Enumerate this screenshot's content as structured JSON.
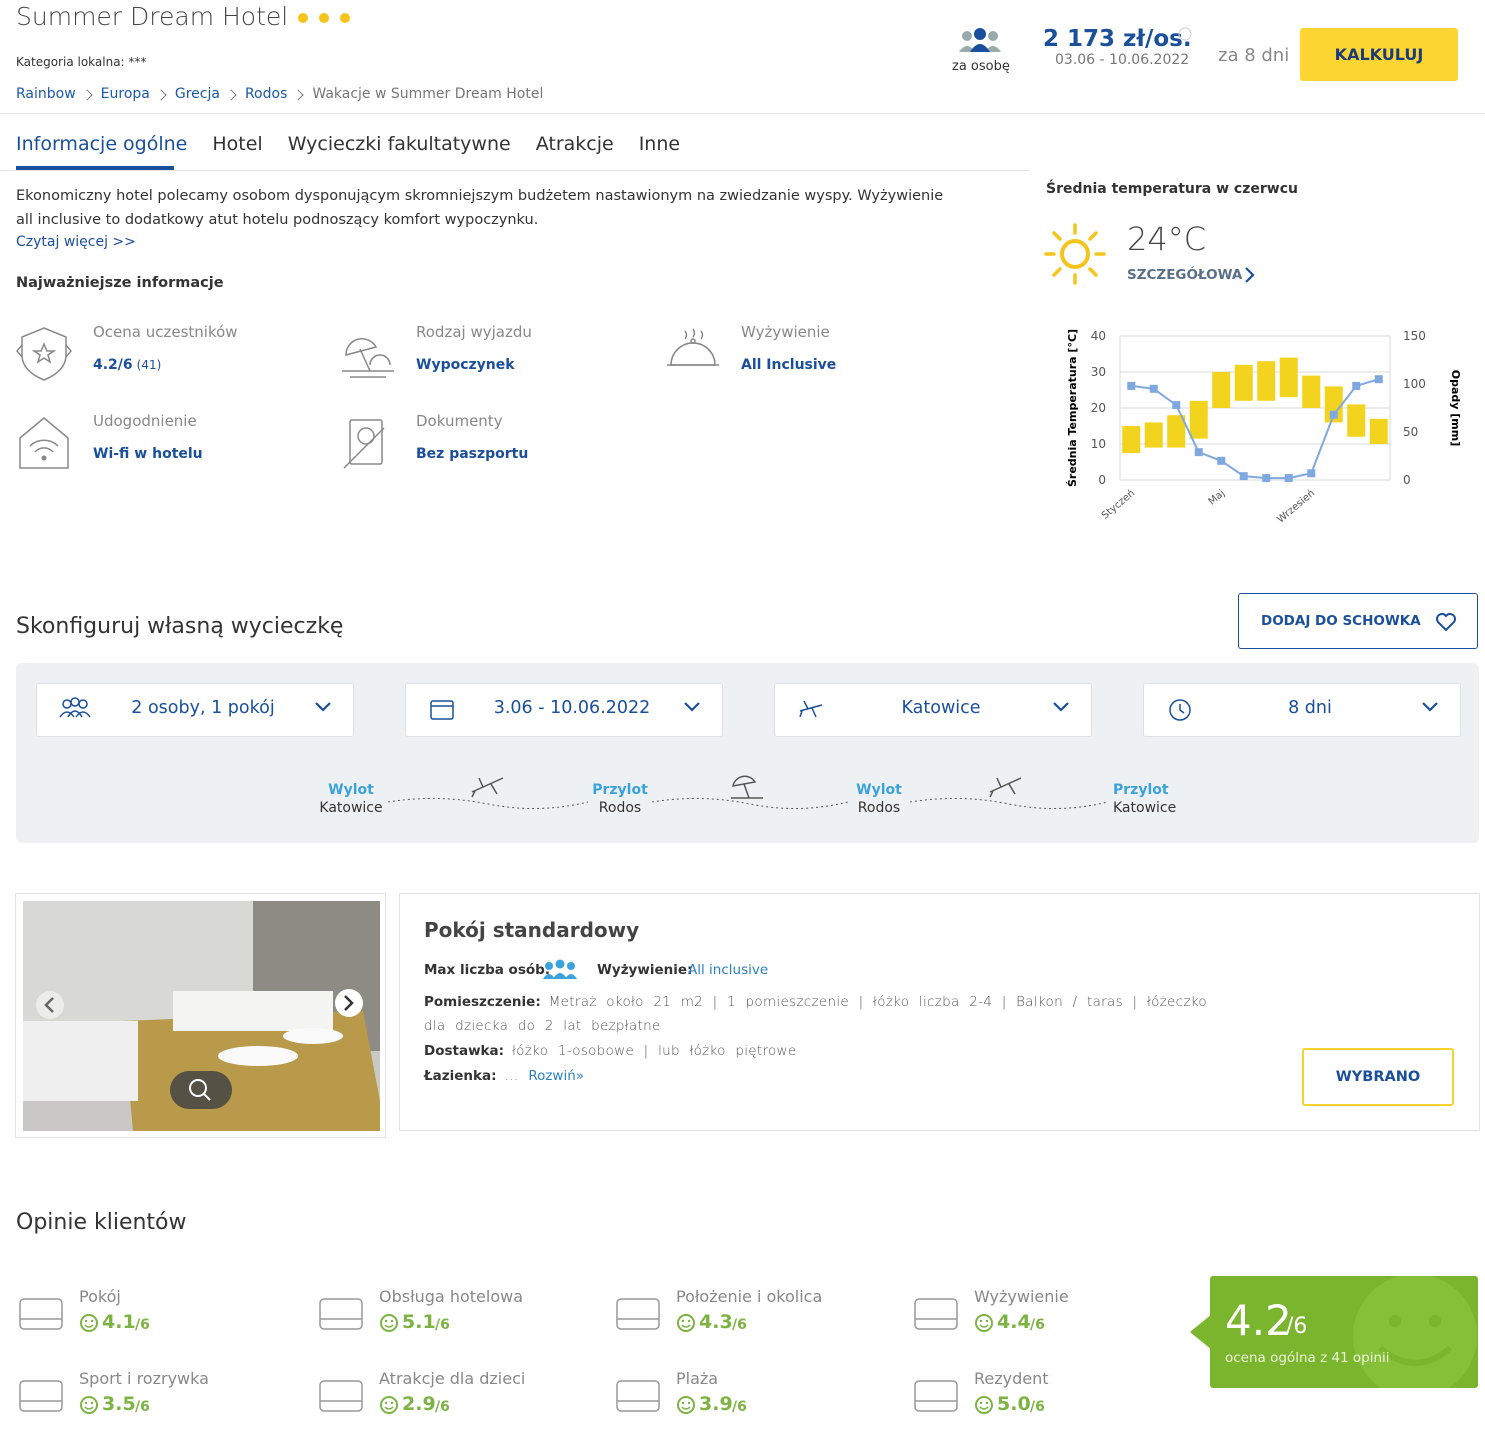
{
  "header": {
    "title": "Summer Dream Hotel",
    "local_category": "Kategoria lokalna: ***",
    "breadcrumbs": [
      "Rainbow",
      "Europa",
      "Grecja",
      "Rodos",
      "Wakacje w Summer Dream Hotel"
    ],
    "per_person": "za osobę",
    "price": "2 173 zł/os.",
    "dates": "03.06 - 10.06.2022",
    "duration": "za 8 dni",
    "button": "KALKULUJ"
  },
  "tabs": [
    "Informacje ogólne",
    "Hotel",
    "Wycieczki fakultatywne",
    "Atrakcje",
    "Inne"
  ],
  "description": {
    "text": "Ekonomiczny hotel polecamy osobom dysponującym skromniejszym budżetem nastawionym na zwiedzanie wyspy. Wyżywienie all inclusive to dodatkowy atut hotelu podnoszący komfort wypoczynku.",
    "read_more": "Czytaj więcej >>"
  },
  "key_info": {
    "title": "Najważniejsze informacje",
    "items": [
      {
        "label": "Ocena uczestników",
        "value": "4.2/6",
        "count": "(41)"
      },
      {
        "label": "Rodzaj wyjazdu",
        "value": "Wypoczynek"
      },
      {
        "label": "Wyżywienie",
        "value": "All Inclusive"
      },
      {
        "label": "Udogodnienie",
        "value": "Wi-fi w hotelu"
      },
      {
        "label": "Dokumenty",
        "value": "Bez paszportu"
      }
    ]
  },
  "weather": {
    "title": "Średnia temperatura w czerwcu",
    "temperature": "24°C",
    "link": "SZCZEGÓŁOWA"
  },
  "chart_data": {
    "type": "bar",
    "y_label": "Średnia Temperatura [°C]",
    "y2_label": "Opady [mm]",
    "categories": [
      "Styczeń",
      null,
      null,
      null,
      "Maj",
      null,
      null,
      null,
      "Wrzesień",
      null,
      null,
      null
    ],
    "ylim": [
      0,
      40
    ],
    "yticks": [
      0,
      10,
      20,
      30,
      40
    ],
    "y2lim": [
      0,
      150
    ],
    "y2ticks": [
      0,
      50,
      100,
      150
    ],
    "grid": true,
    "series": [
      {
        "color": "#f2d41f",
        "low": [
          7.5,
          9,
          9,
          11.5,
          20,
          22,
          22,
          23,
          20,
          16,
          12,
          10
        ],
        "high": [
          15,
          16,
          18,
          22,
          30,
          32,
          33,
          34,
          29,
          26,
          21,
          17
        ]
      },
      {
        "color": "#7fa8e0",
        "axis": "y2",
        "values": [
          98,
          95,
          78,
          29,
          20,
          4,
          2,
          2,
          7,
          68,
          98,
          105
        ]
      }
    ]
  },
  "configure": {
    "title": "Skonfiguruj własną wycieczkę",
    "save_button": "DODAJ DO SCHOWKA",
    "selectors": [
      "2 osoby, 1 pokój",
      "3.06 - 10.06.2022",
      "Katowice",
      "8 dni"
    ],
    "route": [
      {
        "label": "Wylot",
        "place": "Katowice"
      },
      {
        "label": "Przylot",
        "place": "Rodos"
      },
      {
        "label": "Wylot",
        "place": "Rodos"
      },
      {
        "label": "Przylot",
        "place": "Katowice"
      }
    ]
  },
  "room": {
    "title": "Pokój standardowy",
    "max_persons": "Max liczba osób:",
    "board_label": "Wyżywienie:",
    "board_value": "All inclusive",
    "details": [
      {
        "label": "Pomieszczenie:",
        "value": "Metraż około 21 m2 | 1 pomieszczenie | łóżko liczba 2-4 | Balkon / taras | łóżeczko dla dziecka do 2 lat bezpłatne"
      },
      {
        "label": "Dostawka:",
        "value": "łóżko 1-osobowe | lub łóżko piętrowe"
      },
      {
        "label": "Łazienka:",
        "value": "..."
      }
    ],
    "expand": "Rozwiń»",
    "button": "WYBRANO"
  },
  "reviews": {
    "title": "Opinie klientów",
    "scale": "/6",
    "items": [
      {
        "name": "Pokój",
        "score": "4.1"
      },
      {
        "name": "Obsługa hotelowa",
        "score": "5.1"
      },
      {
        "name": "Położenie i okolica",
        "score": "4.3"
      },
      {
        "name": "Wyżywienie",
        "score": "4.4"
      },
      {
        "name": "Sport i rozrywka",
        "score": "3.5"
      },
      {
        "name": "Atrakcje dla dzieci",
        "score": "2.9"
      },
      {
        "name": "Plaża",
        "score": "3.9"
      },
      {
        "name": "Rezydent",
        "score": "5.0"
      }
    ],
    "overall": {
      "score": "4.2",
      "caption": "ocena ogólna z 41 opinii"
    }
  }
}
